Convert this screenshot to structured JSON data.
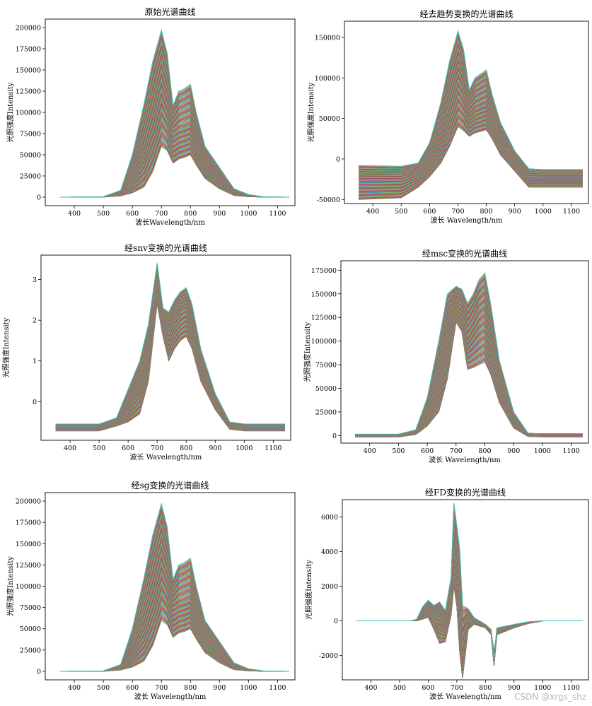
{
  "chart_data": [
    {
      "type": "line",
      "title": "原始光谱曲线",
      "xlabel": "波长Wavelength/nm",
      "ylabel": "光照强度Intensity",
      "xlim": [
        300,
        1160
      ],
      "ylim": [
        -10000,
        210000
      ],
      "xticks": [
        400,
        500,
        600,
        700,
        800,
        900,
        1000,
        1100
      ],
      "yticks": [
        0,
        25000,
        50000,
        75000,
        100000,
        125000,
        150000,
        175000,
        200000
      ],
      "series_count": 120,
      "representative_series": [
        {
          "name": "max",
          "x": [
            350,
            500,
            560,
            600,
            640,
            670,
            700,
            720,
            740,
            760,
            780,
            800,
            820,
            850,
            900,
            950,
            1000,
            1050,
            1140
          ],
          "y": [
            0,
            500,
            8000,
            50000,
            110000,
            160000,
            197000,
            170000,
            108000,
            125000,
            128000,
            133000,
            100000,
            60000,
            35000,
            10000,
            3000,
            500,
            0
          ]
        },
        {
          "name": "mean",
          "x": [
            350,
            500,
            560,
            600,
            640,
            670,
            700,
            720,
            740,
            760,
            780,
            800,
            820,
            850,
            900,
            950,
            1000,
            1050,
            1140
          ],
          "y": [
            0,
            300,
            5000,
            25000,
            55000,
            90000,
            130000,
            110000,
            75000,
            80000,
            82000,
            85000,
            65000,
            40000,
            20000,
            5000,
            1500,
            300,
            0
          ]
        },
        {
          "name": "min",
          "x": [
            350,
            500,
            560,
            600,
            640,
            670,
            700,
            720,
            740,
            760,
            780,
            800,
            820,
            850,
            900,
            950,
            1000,
            1050,
            1140
          ],
          "y": [
            0,
            100,
            1500,
            5000,
            12000,
            30000,
            60000,
            55000,
            40000,
            45000,
            47000,
            50000,
            38000,
            22000,
            10000,
            2000,
            500,
            100,
            0
          ]
        }
      ]
    },
    {
      "type": "line",
      "title": "经去趋势变换的光谱曲线",
      "xlabel": "波长 Wavelength/nm",
      "ylabel": "光照强度Intensity",
      "xlim": [
        300,
        1160
      ],
      "ylim": [
        -55000,
        170000
      ],
      "xticks": [
        400,
        500,
        600,
        700,
        800,
        900,
        1000,
        1100
      ],
      "yticks": [
        -50000,
        0,
        50000,
        100000,
        150000
      ],
      "series_count": 120,
      "representative_series": [
        {
          "name": "max",
          "x": [
            350,
            500,
            560,
            600,
            640,
            670,
            700,
            720,
            740,
            760,
            780,
            800,
            820,
            850,
            900,
            950,
            1000,
            1050,
            1140
          ],
          "y": [
            -8000,
            -9000,
            -5000,
            20000,
            70000,
            120000,
            158000,
            135000,
            85000,
            100000,
            105000,
            110000,
            80000,
            45000,
            10000,
            -12000,
            -13000,
            -13000,
            -13000
          ]
        },
        {
          "name": "mean",
          "x": [
            350,
            500,
            560,
            600,
            640,
            670,
            700,
            720,
            740,
            760,
            780,
            800,
            820,
            850,
            900,
            950,
            1000,
            1050,
            1140
          ],
          "y": [
            -25000,
            -25000,
            -18000,
            -5000,
            25000,
            60000,
            100000,
            85000,
            55000,
            62000,
            65000,
            68000,
            50000,
            25000,
            0,
            -25000,
            -25000,
            -25000,
            -25000
          ]
        },
        {
          "name": "min",
          "x": [
            350,
            500,
            560,
            600,
            640,
            670,
            700,
            720,
            740,
            760,
            780,
            800,
            820,
            850,
            900,
            950,
            1000,
            1050,
            1140
          ],
          "y": [
            -50000,
            -48000,
            -35000,
            -22000,
            -5000,
            15000,
            40000,
            35000,
            28000,
            32000,
            34000,
            36000,
            25000,
            5000,
            -15000,
            -35000,
            -35000,
            -35000,
            -35000
          ]
        }
      ]
    },
    {
      "type": "line",
      "title": "经snv变换的光谱曲线",
      "xlabel": "波长 Wavelength/nm",
      "ylabel": "光照强度Intensity",
      "xlim": [
        300,
        1160
      ],
      "ylim": [
        -0.95,
        3.6
      ],
      "xticks": [
        400,
        500,
        600,
        700,
        800,
        900,
        1000,
        1100
      ],
      "yticks": [
        0,
        1,
        2,
        3
      ],
      "series_count": 120,
      "representative_series": [
        {
          "name": "max",
          "x": [
            350,
            500,
            560,
            600,
            640,
            670,
            700,
            720,
            740,
            760,
            780,
            800,
            820,
            850,
            900,
            950,
            1000,
            1050,
            1140
          ],
          "y": [
            -0.55,
            -0.55,
            -0.4,
            0.3,
            1.0,
            1.9,
            3.4,
            2.3,
            2.2,
            2.5,
            2.7,
            2.8,
            2.4,
            1.3,
            0.2,
            -0.5,
            -0.55,
            -0.55,
            -0.55
          ]
        },
        {
          "name": "mean",
          "x": [
            350,
            500,
            560,
            600,
            640,
            670,
            700,
            720,
            740,
            760,
            780,
            800,
            820,
            850,
            900,
            950,
            1000,
            1050,
            1140
          ],
          "y": [
            -0.62,
            -0.62,
            -0.5,
            -0.1,
            0.5,
            1.3,
            3.1,
            2.0,
            1.7,
            2.0,
            2.2,
            2.3,
            1.9,
            0.9,
            0.0,
            -0.6,
            -0.62,
            -0.62,
            -0.62
          ]
        },
        {
          "name": "min",
          "x": [
            350,
            500,
            560,
            600,
            640,
            670,
            700,
            720,
            740,
            760,
            780,
            800,
            820,
            850,
            900,
            950,
            1000,
            1050,
            1140
          ],
          "y": [
            -0.72,
            -0.72,
            -0.6,
            -0.5,
            -0.3,
            0.5,
            2.4,
            1.6,
            1.0,
            1.3,
            1.5,
            1.6,
            1.3,
            0.5,
            -0.2,
            -0.68,
            -0.72,
            -0.72,
            -0.72
          ]
        }
      ]
    },
    {
      "type": "line",
      "title": "经msc变换的光谱曲线",
      "xlabel": "波长 Wavelength/nm",
      "ylabel": "光照强度Intensity",
      "xlim": [
        300,
        1160
      ],
      "ylim": [
        -8000,
        185000
      ],
      "xticks": [
        400,
        500,
        600,
        700,
        800,
        900,
        1000,
        1100
      ],
      "yticks": [
        0,
        25000,
        50000,
        75000,
        100000,
        125000,
        150000,
        175000
      ],
      "series_count": 120,
      "representative_series": [
        {
          "name": "max",
          "x": [
            350,
            500,
            560,
            600,
            640,
            670,
            700,
            720,
            740,
            760,
            780,
            800,
            820,
            850,
            900,
            950,
            1000,
            1050,
            1140
          ],
          "y": [
            1500,
            1500,
            6000,
            40000,
            100000,
            150000,
            158000,
            155000,
            140000,
            150000,
            165000,
            172000,
            140000,
            80000,
            25000,
            2500,
            2000,
            2000,
            2000
          ]
        },
        {
          "name": "mean",
          "x": [
            350,
            500,
            560,
            600,
            640,
            670,
            700,
            720,
            740,
            760,
            780,
            800,
            820,
            850,
            900,
            950,
            1000,
            1050,
            1140
          ],
          "y": [
            0,
            0,
            4000,
            25000,
            60000,
            110000,
            145000,
            140000,
            100000,
            110000,
            120000,
            125000,
            100000,
            55000,
            15000,
            1000,
            0,
            0,
            0
          ]
        },
        {
          "name": "min",
          "x": [
            350,
            500,
            560,
            600,
            640,
            670,
            700,
            720,
            740,
            760,
            780,
            800,
            820,
            850,
            900,
            950,
            1000,
            1050,
            1140
          ],
          "y": [
            -1500,
            -1500,
            1000,
            10000,
            25000,
            60000,
            120000,
            110000,
            70000,
            72000,
            75000,
            78000,
            65000,
            35000,
            8000,
            -1000,
            -1500,
            -1500,
            -1500
          ]
        }
      ]
    },
    {
      "type": "line",
      "title": "经sg变换的光谱曲线",
      "xlabel": "波长 Wavelength/nm",
      "ylabel": "光照强度Intensity",
      "xlim": [
        300,
        1160
      ],
      "ylim": [
        -10000,
        210000
      ],
      "xticks": [
        400,
        500,
        600,
        700,
        800,
        900,
        1000,
        1100
      ],
      "yticks": [
        0,
        25000,
        50000,
        75000,
        100000,
        125000,
        150000,
        175000,
        200000
      ],
      "series_count": 120,
      "representative_series": [
        {
          "name": "max",
          "x": [
            350,
            500,
            560,
            600,
            640,
            670,
            700,
            720,
            740,
            760,
            780,
            800,
            820,
            850,
            900,
            950,
            1000,
            1050,
            1140
          ],
          "y": [
            0,
            500,
            8000,
            50000,
            110000,
            160000,
            197000,
            170000,
            108000,
            125000,
            128000,
            133000,
            100000,
            60000,
            35000,
            10000,
            3000,
            500,
            0
          ]
        },
        {
          "name": "mean",
          "x": [
            350,
            500,
            560,
            600,
            640,
            670,
            700,
            720,
            740,
            760,
            780,
            800,
            820,
            850,
            900,
            950,
            1000,
            1050,
            1140
          ],
          "y": [
            0,
            300,
            5000,
            25000,
            55000,
            90000,
            130000,
            110000,
            75000,
            80000,
            82000,
            85000,
            65000,
            40000,
            20000,
            5000,
            1500,
            300,
            0
          ]
        },
        {
          "name": "min",
          "x": [
            350,
            500,
            560,
            600,
            640,
            670,
            700,
            720,
            740,
            760,
            780,
            800,
            820,
            850,
            900,
            950,
            1000,
            1050,
            1140
          ],
          "y": [
            0,
            100,
            1500,
            5000,
            12000,
            30000,
            60000,
            55000,
            40000,
            45000,
            47000,
            50000,
            38000,
            22000,
            10000,
            2000,
            500,
            100,
            0
          ]
        }
      ]
    },
    {
      "type": "line",
      "title": "经FD变换的光谱曲线",
      "xlabel": "波长 Wavelength/nm",
      "ylabel": "光照强度Intensity",
      "xlim": [
        300,
        1160
      ],
      "ylim": [
        -3400,
        7000
      ],
      "xticks": [
        400,
        500,
        600,
        700,
        800,
        900,
        1000,
        1100
      ],
      "yticks": [
        -2000,
        0,
        2000,
        4000,
        6000
      ],
      "series_count": 120,
      "representative_series": [
        {
          "name": "max",
          "x": [
            350,
            540,
            560,
            580,
            600,
            620,
            640,
            660,
            680,
            690,
            700,
            710,
            720,
            740,
            760,
            800,
            820,
            830,
            840,
            900,
            950,
            1000,
            1140
          ],
          "y": [
            0,
            0,
            100,
            800,
            1200,
            900,
            1100,
            600,
            2500,
            6800,
            5500,
            4200,
            900,
            700,
            200,
            -200,
            -500,
            -2200,
            -400,
            -200,
            -50,
            0,
            0
          ]
        },
        {
          "name": "mean",
          "x": [
            350,
            540,
            560,
            580,
            600,
            620,
            640,
            660,
            680,
            690,
            700,
            710,
            720,
            740,
            760,
            800,
            820,
            830,
            840,
            900,
            950,
            1000,
            1140
          ],
          "y": [
            0,
            0,
            50,
            400,
            600,
            300,
            200,
            -300,
            1500,
            4500,
            3000,
            -500,
            -2500,
            300,
            0,
            -300,
            -600,
            -1800,
            -600,
            -300,
            -100,
            0,
            0
          ]
        },
        {
          "name": "min",
          "x": [
            350,
            540,
            560,
            580,
            600,
            620,
            640,
            660,
            680,
            690,
            700,
            710,
            720,
            740,
            760,
            800,
            820,
            830,
            840,
            900,
            950,
            1000,
            1140
          ],
          "y": [
            0,
            0,
            0,
            100,
            200,
            -500,
            -1300,
            -1200,
            300,
            2000,
            800,
            -1800,
            -3300,
            -500,
            -200,
            -400,
            -800,
            -2600,
            -800,
            -400,
            -150,
            0,
            0
          ]
        }
      ]
    }
  ],
  "watermark": "CSDN @xrgs_shz",
  "palette": [
    "#1f77b4",
    "#ff7f0e",
    "#2ca02c",
    "#d62728",
    "#9467bd",
    "#8c564b",
    "#e377c2",
    "#7f7f7f",
    "#bcbd22",
    "#17becf"
  ]
}
